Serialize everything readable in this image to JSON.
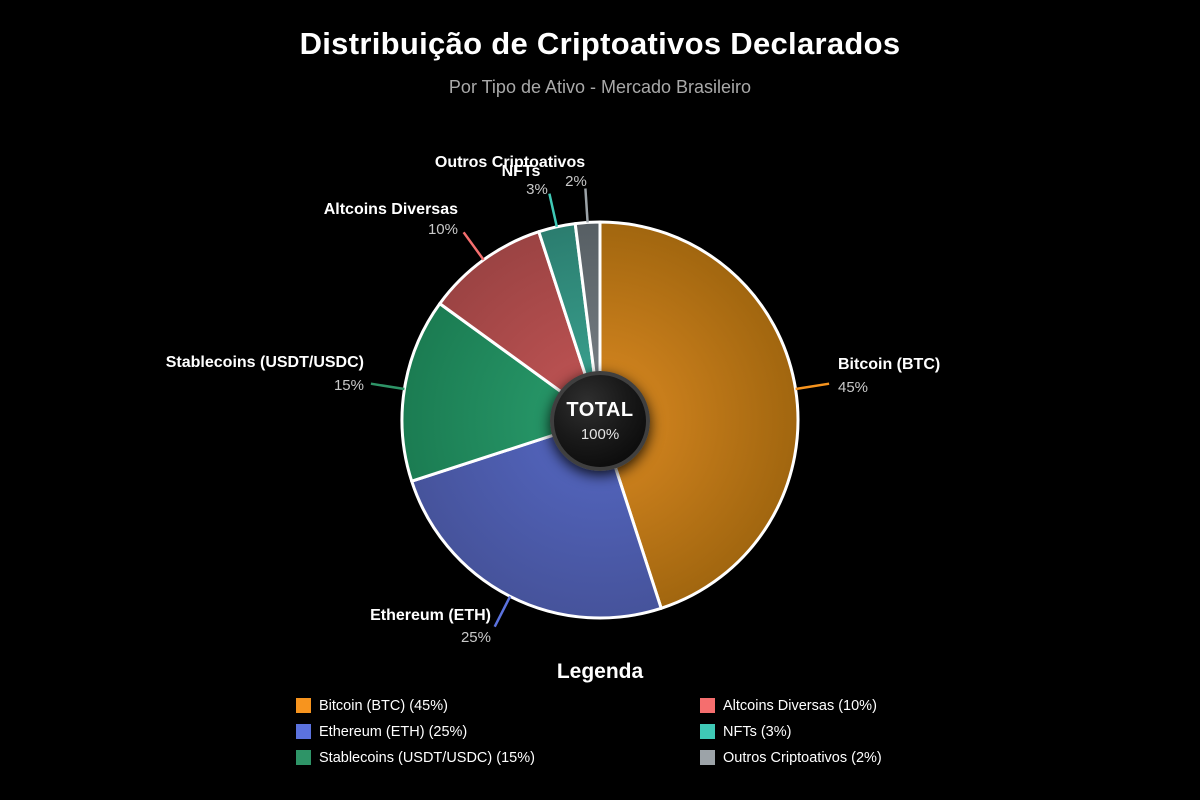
{
  "page": {
    "background": "#000000"
  },
  "chart_data": {
    "type": "pie",
    "title": "Distribuição de Criptoativos Declarados",
    "subtitle": "Por Tipo de Ativo - Mercado Brasileiro",
    "legend_title": "Legenda",
    "legend_position": "bottom",
    "center_label": {
      "title": "TOTAL",
      "value": "100%"
    },
    "categories": [
      "Bitcoin (BTC)",
      "Ethereum (ETH)",
      "Stablecoins (USDT/USDC)",
      "Altcoins Diversas",
      "NFTs",
      "Outros Criptoativos"
    ],
    "values": [
      45,
      25,
      15,
      10,
      3,
      2
    ],
    "slice_border_color": "#ffffff",
    "slices": [
      {
        "id": "bitcoin",
        "label": "Bitcoin (BTC)",
        "value": 45,
        "pct_label": "45%",
        "legend_label": "Bitcoin (BTC) (45%)",
        "color": "#F7941E",
        "slice_inner": "#DC8A22",
        "slice_outer": "#A1660F"
      },
      {
        "id": "ethereum",
        "label": "Ethereum (ETH)",
        "value": 25,
        "pct_label": "25%",
        "legend_label": "Ethereum (ETH) (25%)",
        "color": "#5B72DE",
        "slice_inner": "#5568C4",
        "slice_outer": "#46539B"
      },
      {
        "id": "stablecoins",
        "label": "Stablecoins (USDT/USDC)",
        "value": 15,
        "pct_label": "15%",
        "legend_label": "Stablecoins (USDT/USDC) (15%)",
        "color": "#2E9467",
        "slice_inner": "#2A9E6E",
        "slice_outer": "#1B7C52"
      },
      {
        "id": "altcoins",
        "label": "Altcoins Diversas",
        "value": 10,
        "pct_label": "10%",
        "legend_label": "Altcoins Diversas (10%)",
        "color": "#F56E6E",
        "slice_inner": "#C45656",
        "slice_outer": "#9B4343"
      },
      {
        "id": "nfts",
        "label": "NFTs",
        "value": 3,
        "pct_label": "3%",
        "legend_label": "NFTs (3%)",
        "color": "#3FC9B6",
        "slice_inner": "#3CA794",
        "slice_outer": "#2B7D6F"
      },
      {
        "id": "outros",
        "label": "Outros Criptoativos",
        "value": 2,
        "pct_label": "2%",
        "legend_label": "Outros Criptoativos (2%)",
        "color": "#9CA3A8",
        "slice_inner": "#7D858B",
        "slice_outer": "#565E63"
      }
    ]
  }
}
